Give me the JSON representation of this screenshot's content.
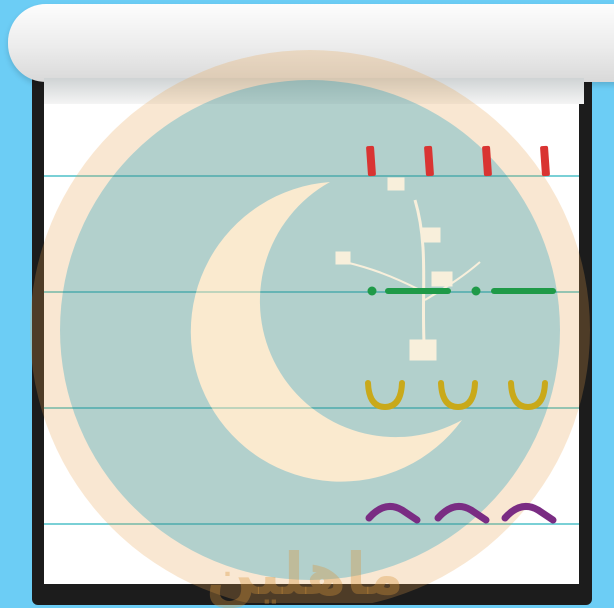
{
  "app": {
    "brand_text": "ماهلين",
    "logo_name": "crescent-moon-logo"
  },
  "worksheet": {
    "rows": [
      {
        "name": "vertical-strokes",
        "color": "#d93432",
        "count": 4
      },
      {
        "name": "horizontal-dotted-lines",
        "color": "#1f9a48",
        "count": 2
      },
      {
        "name": "u-curves",
        "color": "#c9a91a",
        "count": 3
      },
      {
        "name": "tilde-waves",
        "color": "#7a2c83",
        "count": 3
      }
    ]
  },
  "colors": {
    "background": "#6ccdf5",
    "guide_line": "#4fc0c8",
    "watermark_moon": "#f0c27a",
    "watermark_ring": "#e6a04a"
  }
}
